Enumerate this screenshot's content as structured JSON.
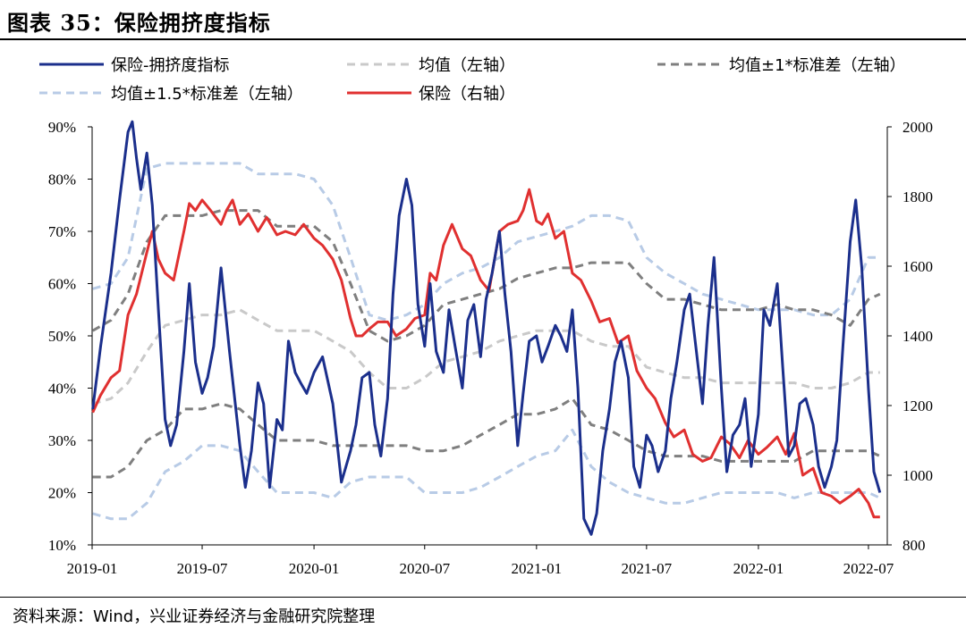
{
  "figure": {
    "title": "图表 35：保险拥挤度指标",
    "source": "资料来源：Wind，兴业证券经济与金融研究院整理"
  },
  "colors": {
    "index": "#1b2f8c",
    "mean": "#c9c9c9",
    "band1": "#7f7f7f",
    "band15": "#b8cbe6",
    "insurance": "#e03030"
  },
  "chart_data": {
    "type": "line",
    "x_tick_labels": [
      "2019-01",
      "2019-07",
      "2020-01",
      "2020-07",
      "2021-01",
      "2021-07",
      "2022-01",
      "2022-07"
    ],
    "xlim": [
      "2019-01-01",
      "2022-08-01"
    ],
    "left_axis": {
      "ylim": [
        10,
        90
      ],
      "unit": "%",
      "ticks": [
        "10%",
        "20%",
        "30%",
        "40%",
        "50%",
        "60%",
        "70%",
        "80%",
        "90%"
      ]
    },
    "right_axis": {
      "ylim": [
        800,
        2000
      ],
      "ticks": [
        "800",
        "1000",
        "1200",
        "1400",
        "1600",
        "1800",
        "2000"
      ]
    },
    "legend_placement": "top",
    "series": [
      {
        "name": "保险-拥挤度指标",
        "axis": "left",
        "style": "solid",
        "color_key": "index",
        "x": [
          "2019-01-02",
          "2019-01-15",
          "2019-02-01",
          "2019-02-15",
          "2019-03-01",
          "2019-03-08",
          "2019-03-15",
          "2019-03-22",
          "2019-04-01",
          "2019-04-10",
          "2019-04-20",
          "2019-05-01",
          "2019-05-10",
          "2019-05-20",
          "2019-06-01",
          "2019-06-10",
          "2019-06-20",
          "2019-07-01",
          "2019-07-10",
          "2019-07-20",
          "2019-08-01",
          "2019-08-15",
          "2019-09-01",
          "2019-09-10",
          "2019-09-20",
          "2019-10-01",
          "2019-10-10",
          "2019-10-20",
          "2019-11-01",
          "2019-11-10",
          "2019-11-20",
          "2019-12-01",
          "2019-12-10",
          "2019-12-20",
          "2020-01-01",
          "2020-01-15",
          "2020-02-01",
          "2020-02-15",
          "2020-03-01",
          "2020-03-10",
          "2020-03-20",
          "2020-04-01",
          "2020-04-10",
          "2020-04-20",
          "2020-05-01",
          "2020-05-10",
          "2020-05-20",
          "2020-06-01",
          "2020-06-10",
          "2020-06-20",
          "2020-07-01",
          "2020-07-10",
          "2020-07-20",
          "2020-08-01",
          "2020-08-10",
          "2020-08-20",
          "2020-09-01",
          "2020-09-10",
          "2020-09-20",
          "2020-10-01",
          "2020-10-10",
          "2020-10-20",
          "2020-11-01",
          "2020-11-10",
          "2020-11-20",
          "2020-12-01",
          "2020-12-10",
          "2020-12-20",
          "2021-01-01",
          "2021-01-10",
          "2021-01-20",
          "2021-02-01",
          "2021-02-10",
          "2021-02-20",
          "2021-03-01",
          "2021-03-10",
          "2021-03-20",
          "2021-04-01",
          "2021-04-10",
          "2021-04-20",
          "2021-05-01",
          "2021-05-10",
          "2021-05-20",
          "2021-06-01",
          "2021-06-10",
          "2021-06-20",
          "2021-07-01",
          "2021-07-10",
          "2021-07-20",
          "2021-08-01",
          "2021-08-10",
          "2021-08-20",
          "2021-09-01",
          "2021-09-10",
          "2021-09-20",
          "2021-10-01",
          "2021-10-10",
          "2021-10-20",
          "2021-11-01",
          "2021-11-10",
          "2021-11-20",
          "2021-12-01",
          "2021-12-10",
          "2021-12-20",
          "2022-01-01",
          "2022-01-10",
          "2022-01-20",
          "2022-02-01",
          "2022-02-10",
          "2022-02-20",
          "2022-03-01",
          "2022-03-10",
          "2022-03-20",
          "2022-04-01",
          "2022-04-10",
          "2022-04-20",
          "2022-05-01",
          "2022-05-10",
          "2022-05-20",
          "2022-06-01",
          "2022-06-10",
          "2022-06-20",
          "2022-07-01",
          "2022-07-10",
          "2022-07-20"
        ],
        "y": [
          36,
          48,
          62,
          76,
          89,
          91,
          84,
          78,
          85,
          75,
          55,
          34,
          29,
          33,
          47,
          60,
          45,
          39,
          42,
          48,
          63,
          47,
          29,
          21,
          28,
          41,
          37,
          21,
          34,
          32,
          49,
          43,
          41,
          39,
          43,
          46,
          37,
          22,
          28,
          33,
          42,
          43,
          33,
          27,
          38,
          58,
          73,
          80,
          75,
          56,
          48,
          60,
          47,
          43,
          55,
          48,
          40,
          53,
          56,
          46,
          57,
          62,
          70,
          58,
          47,
          29,
          39,
          49,
          50,
          45,
          48,
          52,
          50,
          47,
          55,
          40,
          15,
          12,
          16,
          28,
          36,
          45,
          49,
          42,
          25,
          21,
          31,
          29,
          24,
          28,
          38,
          45,
          55,
          58,
          48,
          37,
          52,
          65,
          40,
          24,
          31,
          33,
          38,
          25,
          35,
          55,
          52,
          60,
          44,
          27,
          29,
          37,
          38,
          33,
          25,
          21,
          25,
          30,
          48,
          68,
          76,
          63,
          40,
          24,
          20
        ]
      },
      {
        "name": "均值（左轴）",
        "axis": "left",
        "style": "dashed",
        "color_key": "mean",
        "x": [
          "2019-01-02",
          "2019-02-01",
          "2019-03-01",
          "2019-04-01",
          "2019-05-01",
          "2019-06-01",
          "2019-07-01",
          "2019-08-01",
          "2019-09-01",
          "2019-10-01",
          "2019-11-01",
          "2019-12-01",
          "2020-01-01",
          "2020-02-01",
          "2020-03-01",
          "2020-04-01",
          "2020-05-01",
          "2020-06-01",
          "2020-07-01",
          "2020-08-01",
          "2020-09-01",
          "2020-10-01",
          "2020-11-01",
          "2020-12-01",
          "2021-01-01",
          "2021-02-01",
          "2021-03-01",
          "2021-04-01",
          "2021-05-01",
          "2021-06-01",
          "2021-07-01",
          "2021-08-01",
          "2021-09-01",
          "2021-10-01",
          "2021-11-01",
          "2021-12-01",
          "2022-01-01",
          "2022-02-01",
          "2022-03-01",
          "2022-04-01",
          "2022-05-01",
          "2022-06-01",
          "2022-07-01",
          "2022-07-20"
        ],
        "y": [
          37,
          38,
          41,
          47,
          52,
          53,
          54,
          54,
          55,
          53,
          51,
          51,
          51,
          49,
          47,
          43,
          40,
          40,
          42,
          45,
          46,
          47,
          49,
          50,
          51,
          51,
          51,
          49,
          48,
          48,
          44,
          43,
          42,
          42,
          41,
          41,
          41,
          41,
          41,
          40,
          40,
          41,
          43,
          43
        ]
      },
      {
        "name": "均值±1*标准差（左轴）",
        "axis": "left",
        "style": "dashed",
        "color_key": "band1",
        "x": [
          "2019-01-02",
          "2019-02-01",
          "2019-03-01",
          "2019-04-01",
          "2019-05-01",
          "2019-06-01",
          "2019-07-01",
          "2019-08-01",
          "2019-09-01",
          "2019-10-01",
          "2019-11-01",
          "2019-12-01",
          "2020-01-01",
          "2020-02-01",
          "2020-03-01",
          "2020-04-01",
          "2020-05-01",
          "2020-06-01",
          "2020-07-01",
          "2020-08-01",
          "2020-09-01",
          "2020-10-01",
          "2020-11-01",
          "2020-12-01",
          "2021-01-01",
          "2021-02-01",
          "2021-03-01",
          "2021-04-01",
          "2021-05-01",
          "2021-06-01",
          "2021-07-01",
          "2021-08-01",
          "2021-09-01",
          "2021-10-01",
          "2021-11-01",
          "2021-12-01",
          "2022-01-01",
          "2022-02-01",
          "2022-03-01",
          "2022-04-01",
          "2022-05-01",
          "2022-06-01",
          "2022-07-01",
          "2022-07-20"
        ],
        "y": [
          51,
          53,
          58,
          68,
          73,
          73,
          73,
          74,
          74,
          74,
          71,
          71,
          71,
          68,
          60,
          51,
          49,
          50,
          52,
          56,
          57,
          58,
          59,
          61,
          62,
          63,
          63,
          64,
          64,
          64,
          60,
          57,
          57,
          56,
          55,
          55,
          55,
          56,
          55,
          55,
          54,
          52,
          57,
          58
        ]
      },
      {
        "name": "",
        "axis": "left",
        "style": "dashed",
        "color_key": "band1",
        "x": [
          "2019-01-02",
          "2019-02-01",
          "2019-03-01",
          "2019-04-01",
          "2019-05-01",
          "2019-06-01",
          "2019-07-01",
          "2019-08-01",
          "2019-09-01",
          "2019-10-01",
          "2019-11-01",
          "2019-12-01",
          "2020-01-01",
          "2020-02-01",
          "2020-03-01",
          "2020-04-01",
          "2020-05-01",
          "2020-06-01",
          "2020-07-01",
          "2020-08-01",
          "2020-09-01",
          "2020-10-01",
          "2020-11-01",
          "2020-12-01",
          "2021-01-01",
          "2021-02-01",
          "2021-03-01",
          "2021-04-01",
          "2021-05-01",
          "2021-06-01",
          "2021-07-01",
          "2021-08-01",
          "2021-09-01",
          "2021-10-01",
          "2021-11-01",
          "2021-12-01",
          "2022-01-01",
          "2022-02-01",
          "2022-03-01",
          "2022-04-01",
          "2022-05-01",
          "2022-06-01",
          "2022-07-01",
          "2022-07-20"
        ],
        "y": [
          23,
          23,
          25,
          30,
          32,
          36,
          36,
          37,
          36,
          33,
          30,
          30,
          30,
          29,
          29,
          29,
          29,
          29,
          28,
          28,
          29,
          31,
          33,
          35,
          35,
          36,
          38,
          33,
          32,
          30,
          28,
          27,
          27,
          27,
          26,
          26,
          26,
          26,
          26,
          28,
          28,
          28,
          28,
          27
        ]
      },
      {
        "name": "均值±1.5*标准差（左轴）",
        "axis": "left",
        "style": "dashed",
        "color_key": "band15",
        "x": [
          "2019-01-02",
          "2019-02-01",
          "2019-03-01",
          "2019-04-01",
          "2019-05-01",
          "2019-06-01",
          "2019-07-01",
          "2019-08-01",
          "2019-09-01",
          "2019-10-01",
          "2019-11-01",
          "2019-12-01",
          "2020-01-01",
          "2020-02-01",
          "2020-03-01",
          "2020-04-01",
          "2020-05-01",
          "2020-06-01",
          "2020-07-01",
          "2020-08-01",
          "2020-09-01",
          "2020-10-01",
          "2020-11-01",
          "2020-12-01",
          "2021-01-01",
          "2021-02-01",
          "2021-03-01",
          "2021-04-01",
          "2021-05-01",
          "2021-06-01",
          "2021-07-01",
          "2021-08-01",
          "2021-09-01",
          "2021-10-01",
          "2021-11-01",
          "2021-12-01",
          "2022-01-01",
          "2022-02-01",
          "2022-03-01",
          "2022-04-01",
          "2022-05-01",
          "2022-06-01",
          "2022-07-01",
          "2022-07-20"
        ],
        "y": [
          59,
          60,
          65,
          82,
          83,
          83,
          83,
          83,
          83,
          81,
          81,
          81,
          80,
          75,
          65,
          54,
          53,
          54,
          56,
          60,
          62,
          63,
          65,
          68,
          69,
          70,
          71,
          73,
          73,
          72,
          65,
          62,
          60,
          58,
          57,
          56,
          55,
          55,
          55,
          54,
          54,
          57,
          65,
          65
        ]
      },
      {
        "name": "",
        "axis": "left",
        "style": "dashed",
        "color_key": "band15",
        "x": [
          "2019-01-02",
          "2019-02-01",
          "2019-03-01",
          "2019-04-01",
          "2019-05-01",
          "2019-06-01",
          "2019-07-01",
          "2019-08-01",
          "2019-09-01",
          "2019-10-01",
          "2019-11-01",
          "2019-12-01",
          "2020-01-01",
          "2020-02-01",
          "2020-03-01",
          "2020-04-01",
          "2020-05-01",
          "2020-06-01",
          "2020-07-01",
          "2020-08-01",
          "2020-09-01",
          "2020-10-01",
          "2020-11-01",
          "2020-12-01",
          "2021-01-01",
          "2021-02-01",
          "2021-03-01",
          "2021-04-01",
          "2021-05-01",
          "2021-06-01",
          "2021-07-01",
          "2021-08-01",
          "2021-09-01",
          "2021-10-01",
          "2021-11-01",
          "2021-12-01",
          "2022-01-01",
          "2022-02-01",
          "2022-03-01",
          "2022-04-01",
          "2022-05-01",
          "2022-06-01",
          "2022-07-01",
          "2022-07-20"
        ],
        "y": [
          16,
          15,
          15,
          18,
          24,
          26,
          29,
          29,
          28,
          24,
          20,
          20,
          20,
          19,
          22,
          23,
          23,
          23,
          20,
          20,
          20,
          21,
          23,
          25,
          27,
          28,
          32,
          25,
          22,
          20,
          19,
          18,
          18,
          19,
          20,
          20,
          20,
          20,
          19,
          20,
          20,
          20,
          20,
          19
        ]
      },
      {
        "name": "保险（右轴）",
        "axis": "right",
        "style": "solid",
        "color_key": "insurance",
        "x": [
          "2019-01-02",
          "2019-01-15",
          "2019-02-01",
          "2019-02-15",
          "2019-03-01",
          "2019-03-15",
          "2019-04-01",
          "2019-04-10",
          "2019-04-20",
          "2019-05-01",
          "2019-05-15",
          "2019-06-01",
          "2019-06-10",
          "2019-06-20",
          "2019-07-01",
          "2019-07-15",
          "2019-08-01",
          "2019-08-10",
          "2019-08-20",
          "2019-09-01",
          "2019-09-15",
          "2019-10-01",
          "2019-10-15",
          "2019-11-01",
          "2019-11-15",
          "2019-12-01",
          "2019-12-15",
          "2020-01-01",
          "2020-01-15",
          "2020-02-01",
          "2020-02-15",
          "2020-03-01",
          "2020-03-10",
          "2020-03-20",
          "2020-04-01",
          "2020-04-15",
          "2020-05-01",
          "2020-05-15",
          "2020-06-01",
          "2020-06-15",
          "2020-07-01",
          "2020-07-10",
          "2020-07-20",
          "2020-08-01",
          "2020-08-15",
          "2020-09-01",
          "2020-09-15",
          "2020-10-01",
          "2020-10-15",
          "2020-11-01",
          "2020-11-15",
          "2020-12-01",
          "2020-12-10",
          "2020-12-20",
          "2021-01-01",
          "2021-01-10",
          "2021-01-20",
          "2021-02-01",
          "2021-02-15",
          "2021-03-01",
          "2021-03-15",
          "2021-04-01",
          "2021-04-15",
          "2021-05-01",
          "2021-05-15",
          "2021-06-01",
          "2021-06-15",
          "2021-07-01",
          "2021-07-15",
          "2021-08-01",
          "2021-08-15",
          "2021-09-01",
          "2021-09-15",
          "2021-10-01",
          "2021-10-15",
          "2021-11-01",
          "2021-11-15",
          "2021-12-01",
          "2021-12-15",
          "2022-01-01",
          "2022-01-15",
          "2022-02-01",
          "2022-02-15",
          "2022-03-01",
          "2022-03-15",
          "2022-04-01",
          "2022-04-15",
          "2022-05-01",
          "2022-05-15",
          "2022-06-01",
          "2022-06-15",
          "2022-07-01",
          "2022-07-10",
          "2022-07-20"
        ],
        "y": [
          1180,
          1230,
          1280,
          1300,
          1460,
          1520,
          1640,
          1700,
          1620,
          1580,
          1560,
          1700,
          1780,
          1760,
          1790,
          1760,
          1720,
          1760,
          1790,
          1720,
          1750,
          1700,
          1740,
          1690,
          1700,
          1690,
          1720,
          1680,
          1660,
          1620,
          1560,
          1450,
          1400,
          1400,
          1420,
          1440,
          1440,
          1400,
          1420,
          1450,
          1460,
          1580,
          1560,
          1660,
          1720,
          1650,
          1630,
          1560,
          1530,
          1700,
          1720,
          1730,
          1760,
          1820,
          1730,
          1720,
          1750,
          1680,
          1700,
          1580,
          1560,
          1500,
          1440,
          1450,
          1380,
          1400,
          1300,
          1250,
          1220,
          1150,
          1110,
          1130,
          1060,
          1040,
          1050,
          1110,
          1090,
          1050,
          1100,
          1060,
          1080,
          1110,
          1060,
          1120,
          1000,
          1020,
          950,
          940,
          920,
          940,
          960,
          920,
          880,
          880
        ]
      }
    ]
  }
}
